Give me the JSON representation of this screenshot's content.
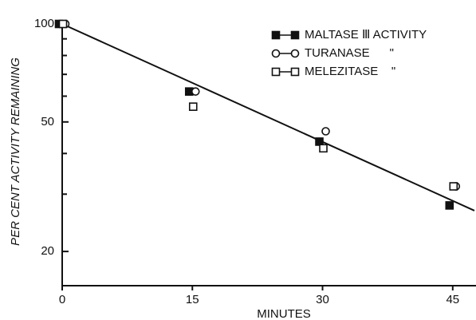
{
  "chart_data": {
    "type": "scatter",
    "x_label": "MINUTES",
    "y_label": "PER CENT ACTIVITY REMAINING",
    "xlim": [
      0,
      47.5
    ],
    "xticks": [
      0,
      15,
      30,
      45
    ],
    "ylim": [
      15.7,
      100
    ],
    "yticks": [
      20,
      50,
      100
    ],
    "yminorticks": [
      30,
      40,
      60,
      70,
      80,
      90
    ],
    "log_y": true,
    "legend": "upper right",
    "series": [
      {
        "name": "MALTASE Ⅲ ACTIVITY",
        "marker": "filled-square",
        "color": "#111",
        "x": [
          0,
          15,
          30,
          45
        ],
        "values": [
          100,
          62,
          43.5,
          27.7
        ]
      },
      {
        "name": "TURANASE      \"",
        "marker": "circle",
        "color": "#111",
        "x": [
          0,
          15,
          30,
          45
        ],
        "values": [
          100,
          62,
          46.8,
          31.7
        ]
      },
      {
        "name": "MELEZITASE    \"",
        "marker": "open-square",
        "color": "#111",
        "x": [
          0,
          15,
          30,
          45
        ],
        "values": [
          100,
          55.7,
          41.5,
          31.7
        ]
      }
    ],
    "fit_line": {
      "x": [
        0,
        47.5
      ],
      "values": [
        100,
        26.7
      ]
    }
  }
}
